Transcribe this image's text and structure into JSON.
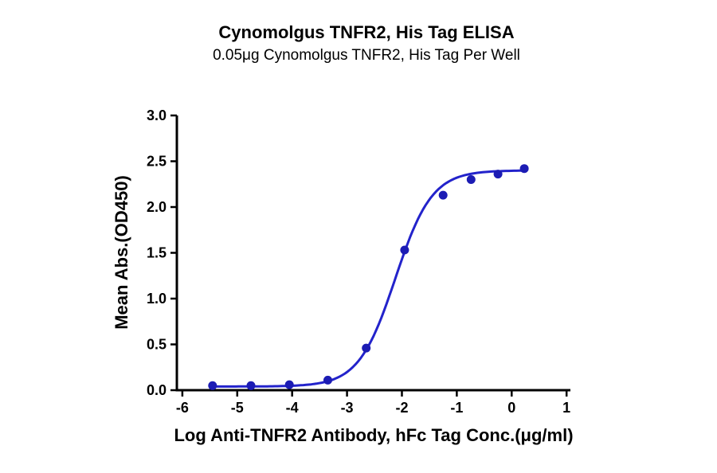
{
  "chart_data": {
    "type": "scatter",
    "title": "Cynomolgus TNFR2, His Tag ELISA",
    "subtitle": "0.05μg Cynomolgus TNFR2, His Tag Per Well",
    "xlabel": "Log Anti-TNFR2 Antibody, hFc Tag Conc.(μg/ml)",
    "ylabel": "Mean Abs.(OD450)",
    "xlim": [
      -6.1,
      1.07
    ],
    "ylim": [
      0,
      3.0
    ],
    "x_ticks": [
      -6,
      -5,
      -4,
      -3,
      -2,
      -1,
      0,
      1
    ],
    "x_tick_labels": [
      "-6",
      "-5",
      "-4",
      "-3",
      "-2",
      "-1",
      "0",
      "1"
    ],
    "y_ticks": [
      0,
      0.5,
      1.0,
      1.5,
      2.0,
      2.5,
      3.0
    ],
    "y_tick_labels": [
      "0.0",
      "0.5",
      "1.0",
      "1.5",
      "2.0",
      "2.5",
      "3.0"
    ],
    "grid": false,
    "legend": false,
    "points": {
      "x": [
        -5.45,
        -4.75,
        -4.05,
        -3.35,
        -2.65,
        -1.95,
        -1.25,
        -0.74,
        -0.25,
        0.23
      ],
      "y": [
        0.05,
        0.05,
        0.06,
        0.11,
        0.46,
        1.53,
        2.13,
        2.3,
        2.36,
        2.42
      ]
    },
    "fit_curve": {
      "model": "4PL sigmoid",
      "bottom": 0.04,
      "top": 2.4,
      "logEC50": -2.12,
      "hill": 1.3,
      "x_start": -5.45,
      "x_end": 0.23
    },
    "colors": {
      "curve": "#2323cb",
      "points": "#1c1cb4",
      "axis": "#000000"
    }
  }
}
